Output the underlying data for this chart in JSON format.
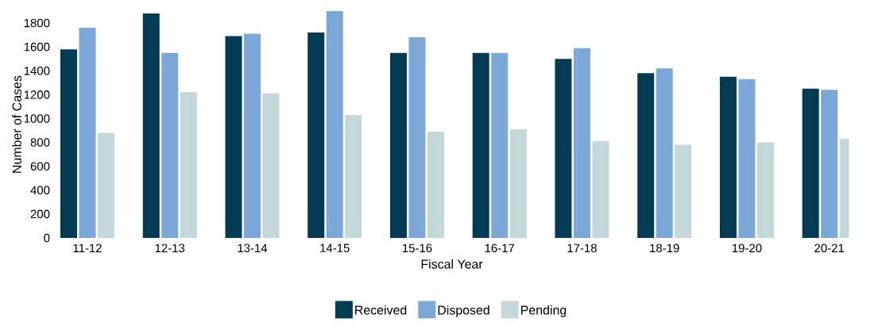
{
  "chart_data": {
    "type": "bar",
    "xlabel": "Fiscal Year",
    "ylabel": "Number of Cases",
    "categories": [
      "11-12",
      "12-13",
      "13-14",
      "14-15",
      "15-16",
      "16-17",
      "17-18",
      "18-19",
      "19-20",
      "20-21"
    ],
    "series": [
      {
        "name": "Received",
        "color": "#033a54",
        "values": [
          1580,
          1880,
          1690,
          1720,
          1550,
          1550,
          1500,
          1380,
          1350,
          1250
        ]
      },
      {
        "name": "Disposed",
        "color": "#7ba7d9",
        "values": [
          1760,
          1550,
          1710,
          1900,
          1680,
          1550,
          1590,
          1420,
          1330,
          1240
        ]
      },
      {
        "name": "Pending",
        "color": "#c2d8da",
        "values": [
          880,
          1220,
          1210,
          1030,
          890,
          910,
          810,
          780,
          800,
          830
        ]
      }
    ],
    "ylim": [
      0,
      1900
    ],
    "yticks": [
      0,
      200,
      400,
      600,
      800,
      1000,
      1200,
      1400,
      1600,
      1800
    ],
    "legend": "bottom"
  }
}
